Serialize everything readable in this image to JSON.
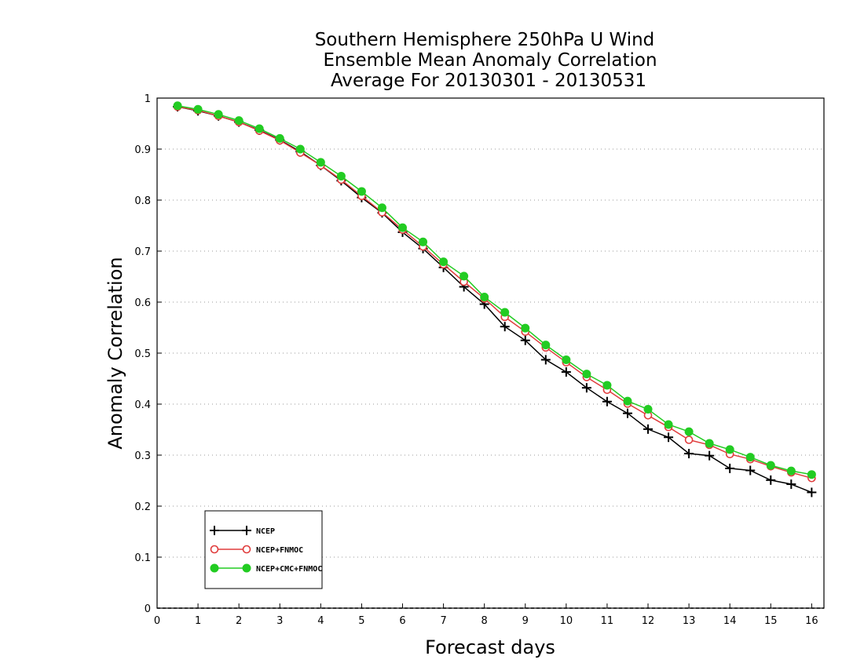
{
  "chart_data": {
    "type": "line",
    "title": [
      "Southern Hemisphere 250hPa U Wind",
      "Ensemble Mean Anomaly Correlation",
      "Average For 20130301 - 20130531"
    ],
    "xlabel": "Forecast days",
    "ylabel": "Anomaly Correlation",
    "xlim": [
      0,
      16.3
    ],
    "ylim": [
      0,
      1
    ],
    "x_ticks": [
      "0",
      "1",
      "2",
      "3",
      "4",
      "5",
      "6",
      "7",
      "8",
      "9",
      "10",
      "11",
      "12",
      "13",
      "14",
      "15",
      "16"
    ],
    "y_ticks": [
      "0",
      "0.1",
      "0.2",
      "0.3",
      "0.4",
      "0.5",
      "0.6",
      "0.7",
      "0.8",
      "0.9",
      "1"
    ],
    "grid": "horizontal dotted",
    "legend_position": "bottom-left",
    "x": [
      0.5,
      1,
      1.5,
      2,
      2.5,
      3,
      3.5,
      4,
      4.5,
      5,
      5.5,
      6,
      6.5,
      7,
      7.5,
      8,
      8.5,
      9,
      9.5,
      10,
      10.5,
      11,
      11.5,
      12,
      12.5,
      13,
      13.5,
      14,
      14.5,
      15,
      15.5,
      16
    ],
    "series": [
      {
        "name": "NCEP",
        "color": "#000000",
        "marker": "plus",
        "values": [
          0.983,
          0.975,
          0.965,
          0.953,
          0.937,
          0.918,
          0.895,
          0.868,
          0.838,
          0.805,
          0.775,
          0.737,
          0.705,
          0.668,
          0.63,
          0.596,
          0.552,
          0.525,
          0.487,
          0.463,
          0.432,
          0.405,
          0.382,
          0.351,
          0.335,
          0.303,
          0.299,
          0.274,
          0.27,
          0.251,
          0.243,
          0.227
        ]
      },
      {
        "name": "NCEP+FNMOC",
        "color": "#e03c3c",
        "marker": "open-circle",
        "values": [
          0.983,
          0.976,
          0.965,
          0.953,
          0.936,
          0.917,
          0.893,
          0.868,
          0.84,
          0.808,
          0.776,
          0.742,
          0.709,
          0.674,
          0.64,
          0.607,
          0.571,
          0.542,
          0.511,
          0.482,
          0.453,
          0.428,
          0.401,
          0.378,
          0.355,
          0.33,
          0.32,
          0.302,
          0.292,
          0.278,
          0.266,
          0.255
        ]
      },
      {
        "name": "NCEP+CMC+FNMOC",
        "color": "#22cc22",
        "marker": "filled-circle",
        "values": [
          0.985,
          0.978,
          0.968,
          0.956,
          0.94,
          0.921,
          0.9,
          0.874,
          0.847,
          0.817,
          0.785,
          0.746,
          0.718,
          0.679,
          0.651,
          0.61,
          0.58,
          0.549,
          0.516,
          0.487,
          0.459,
          0.437,
          0.406,
          0.39,
          0.36,
          0.346,
          0.323,
          0.311,
          0.296,
          0.28,
          0.269,
          0.262
        ]
      }
    ]
  }
}
